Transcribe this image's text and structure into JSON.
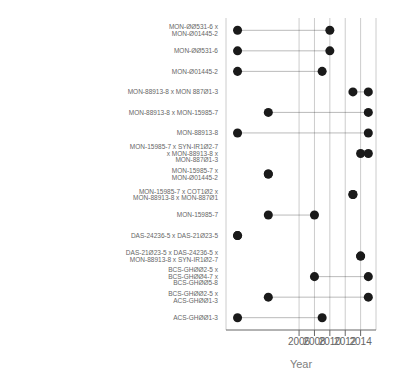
{
  "chart_data": {
    "type": "dumbbell",
    "categories": [
      "MON-ØØ531-6 x MON-Ø01445-2",
      "MON-ØØ531-6",
      "MON-Ø01445-2",
      "MON-88913-8 x MON 887Ø1-3",
      "MON-88913-8 x MON-15985-7",
      "MON-88913-8",
      "MON-15985-7 x SYN-IR1Ø2-7 x MON-88913-8 x MON-887Ø1-3",
      "MON-15985-7 x MON-Ø01445-2",
      "MON-15985-7 x COT1Ø2 x MON-88913-8 x MON-887Ø1",
      "MON-15985-7",
      "DAS-24236-5 x DAS-21Ø23-5",
      "DAS-21Ø23-5 x DAS-24236-5 x MON-88913-8 x SYN-IR1Ø2-7",
      "BCS-GHØØ2-5 x BCS-GHØØ4-7 x BCS-GHØØ5-8",
      "BCS-GHØØ2-5 x ACS-GHØØ1-3",
      "ACS-GHØØ1-3"
    ],
    "values": [
      [
        1998,
        2010
      ],
      [
        1998,
        2010
      ],
      [
        1998,
        2009
      ],
      [
        2013,
        2015
      ],
      [
        2002,
        2015
      ],
      [
        1998,
        2015
      ],
      [
        2014,
        2015
      ],
      [
        2002,
        2002
      ],
      [
        2013,
        2013
      ],
      [
        2002,
        2008
      ],
      [
        1998,
        1998
      ],
      [
        2014,
        2014
      ],
      [
        2008,
        2015
      ],
      [
        2002,
        2015
      ],
      [
        1998,
        2009
      ]
    ],
    "color": "#1a1a1a",
    "xlabel": "Year",
    "xlim": [
      1996.5,
      2016
    ],
    "xticks": [
      2006,
      2008,
      2010,
      2012,
      2014
    ],
    "grid": true
  }
}
